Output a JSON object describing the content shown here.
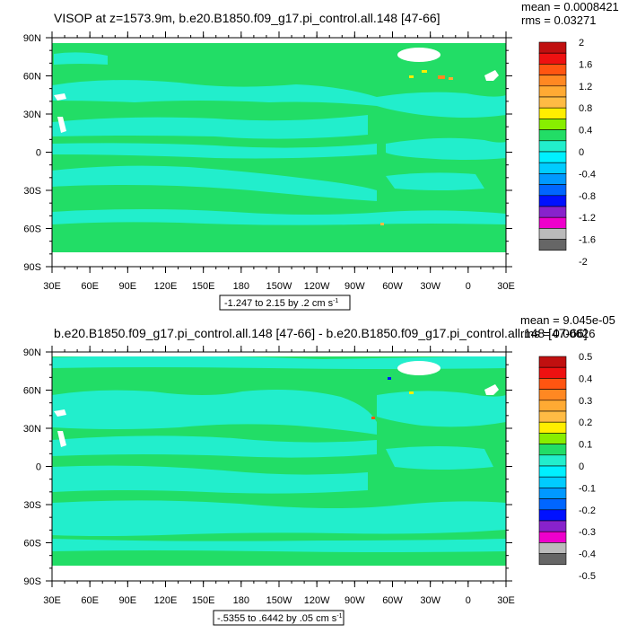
{
  "colors": {
    "ocean_zero": "#22dd66",
    "ocean_neg": "#22eecc",
    "land": "#ffffff",
    "frame": "#000000",
    "palette": [
      "#c01010",
      "#ee1111",
      "#ff5511",
      "#ff8822",
      "#ffaa33",
      "#ffbb44",
      "#ffee00",
      "#88ee00",
      "#22dd66",
      "#22eecc",
      "#00f0ff",
      "#00ccff",
      "#0099ff",
      "#0066ff",
      "#0011ff",
      "#8822cc",
      "#ee00cc",
      "#bbbbbb",
      "#666666"
    ]
  },
  "axes": {
    "lat_labels": [
      "90N",
      "60N",
      "30N",
      "0",
      "30S",
      "60S",
      "90S"
    ],
    "lon_labels": [
      "30E",
      "60E",
      "90E",
      "120E",
      "150E",
      "180",
      "150W",
      "120W",
      "90W",
      "60W",
      "30W",
      "0",
      "30E"
    ]
  },
  "panels": [
    {
      "title": "VISOP at z=1573.9m, b.e20.B1850.f09_g17.pi_control.all.148 [47-66]",
      "stat_mean": "mean = 0.0008421",
      "stat_rms": "rms = 0.03271",
      "range_text": "-1.247 to 2.15 by .2 cm s",
      "range_sup": "-1",
      "colorbar_labels": [
        "2",
        "1.6",
        "1.2",
        "0.8",
        "0.4",
        "0",
        "-0.4",
        "-0.8",
        "-1.2",
        "-1.6",
        "-2"
      ]
    },
    {
      "title": "b.e20.B1850.f09_g17.pi_control.all.148 [47-66] - b.e20.B1850.f09_g17.pi_control.all.148 [47-66]",
      "stat_mean": "mean = 9.045e-05",
      "stat_rms": "rms = 0.00626",
      "range_text": "-.5355 to .6442 by .05 cm s",
      "range_sup": "-1",
      "colorbar_labels": [
        "0.5",
        "0.4",
        "0.3",
        "0.2",
        "0.1",
        "0",
        "-0.1",
        "-0.2",
        "-0.3",
        "-0.4",
        "-0.5"
      ]
    }
  ]
}
